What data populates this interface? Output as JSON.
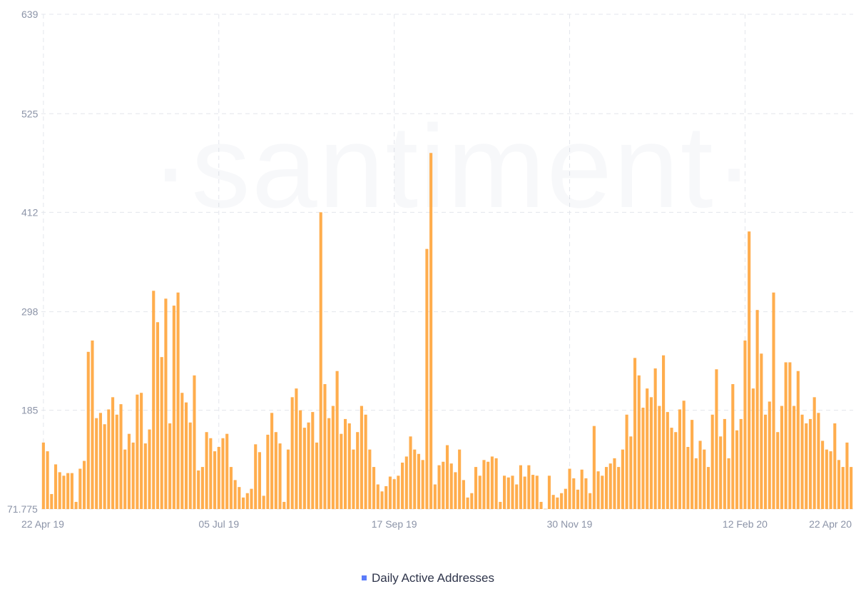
{
  "watermark": "·santiment·",
  "chart_data": {
    "type": "bar",
    "title": "",
    "xlabel": "",
    "ylabel": "",
    "series": [
      {
        "name": "Daily Active Addresses",
        "color": "#ffad4d"
      }
    ],
    "legend": {
      "position": "bottom",
      "swatch_color": "#5b7cfa"
    },
    "grid": true,
    "ylim": [
      71.775,
      639
    ],
    "y_ticks": [
      "639",
      "525",
      "412",
      "298",
      "185",
      "71.775"
    ],
    "y_tick_values": [
      639,
      525,
      412,
      298,
      185,
      71.775
    ],
    "x_ticks": [
      {
        "label": "22 Apr 19",
        "index": 0
      },
      {
        "label": "05 Jul 19",
        "index": 43
      },
      {
        "label": "17 Sep 19",
        "index": 86
      },
      {
        "label": "30 Nov 19",
        "index": 129
      },
      {
        "label": "12 Feb 20",
        "index": 172
      },
      {
        "label": "22 Apr 20",
        "index": 212
      }
    ],
    "start_date": "2019-04-22",
    "values": [
      148,
      138,
      89,
      123,
      114,
      110,
      113,
      113,
      80,
      118,
      127,
      252,
      265,
      176,
      182,
      169,
      186,
      200,
      180,
      192,
      140,
      158,
      148,
      203,
      205,
      147,
      163,
      322,
      286,
      246,
      313,
      170,
      305,
      320,
      205,
      194,
      171,
      225,
      116,
      120,
      160,
      153,
      138,
      143,
      153,
      158,
      120,
      105,
      97,
      85,
      90,
      95,
      146,
      137,
      87,
      157,
      182,
      160,
      147,
      80,
      140,
      200,
      210,
      185,
      165,
      171,
      183,
      148,
      412,
      215,
      176,
      190,
      230,
      158,
      175,
      170,
      140,
      160,
      190,
      180,
      140,
      120,
      100,
      92,
      98,
      109,
      106,
      110,
      125,
      132,
      155,
      140,
      135,
      128,
      370,
      480,
      100,
      122,
      126,
      145,
      124,
      114,
      140,
      105,
      85,
      90,
      120,
      110,
      128,
      126,
      132,
      130,
      80,
      110,
      108,
      110,
      100,
      122,
      109,
      122,
      111,
      110,
      80,
      72,
      110,
      88,
      85,
      90,
      95,
      118,
      107,
      94,
      117,
      107,
      90,
      167,
      115,
      110,
      120,
      124,
      130,
      120,
      140,
      180,
      155,
      245,
      225,
      188,
      210,
      200,
      233,
      190,
      248,
      183,
      165,
      160,
      186,
      196,
      143,
      174,
      130,
      150,
      140,
      120,
      180,
      232,
      155,
      175,
      130,
      215,
      162,
      175,
      265,
      390,
      210,
      300,
      250,
      180,
      195,
      320,
      160,
      190,
      240,
      240,
      190,
      230,
      180,
      170,
      175,
      200,
      182,
      150,
      140,
      138,
      170,
      128,
      120,
      148,
      120
    ]
  }
}
